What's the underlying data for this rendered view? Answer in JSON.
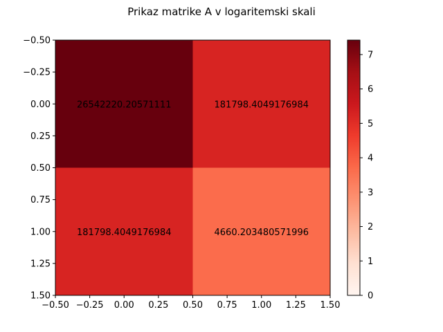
{
  "chart_data": {
    "type": "heatmap",
    "title": "Prikaz matrike A v logaritemski skali",
    "xlabel": "",
    "ylabel": "",
    "xlim": [
      -0.5,
      1.5
    ],
    "ylim": [
      1.5,
      -0.5
    ],
    "x_ticks": [
      "−0.50",
      "−0.25",
      "0.00",
      "0.25",
      "0.50",
      "0.75",
      "1.00",
      "1.25",
      "1.50"
    ],
    "y_ticks": [
      "−0.50",
      "−0.25",
      "0.00",
      "0.25",
      "0.50",
      "0.75",
      "1.00",
      "1.25",
      "1.50"
    ],
    "x_tick_values": [
      -0.5,
      -0.25,
      0,
      0.25,
      0.5,
      0.75,
      1.0,
      1.25,
      1.5
    ],
    "y_tick_values": [
      -0.5,
      -0.25,
      0,
      0.25,
      0.5,
      0.75,
      1.0,
      1.25,
      1.5
    ],
    "cells": [
      {
        "row": 0,
        "col": 0,
        "label": "26542220.20571111",
        "log_value": 7.42
      },
      {
        "row": 0,
        "col": 1,
        "label": "181798.4049176984",
        "log_value": 5.26
      },
      {
        "row": 1,
        "col": 0,
        "label": "181798.4049176984",
        "log_value": 5.26
      },
      {
        "row": 1,
        "col": 1,
        "label": "4660.203480571996",
        "log_value": 3.67
      }
    ],
    "colorbar": {
      "colormap": "Reds",
      "range": [
        0,
        7.42
      ],
      "ticks": [
        "0",
        "1",
        "2",
        "3",
        "4",
        "5",
        "6",
        "7"
      ],
      "tick_values": [
        0,
        1,
        2,
        3,
        4,
        5,
        6,
        7
      ]
    }
  }
}
